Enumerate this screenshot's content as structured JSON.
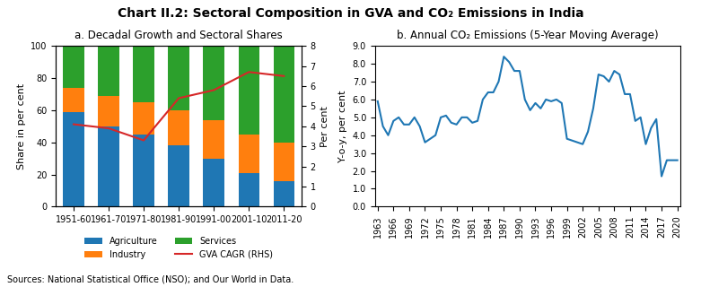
{
  "title": "Chart II.2: Sectoral Composition in GVA and CO₂ Emissions in India",
  "annotations": [
    "Sources: National Statistical Office (NSO); and Our World in Data."
  ],
  "chart_data": [
    {
      "type": "bar",
      "title": "a. Decadal Growth and Sectoral Shares",
      "stacked": true,
      "grid": false,
      "legend": "lower center",
      "categories": [
        "1951-60",
        "1961-70",
        "1971-80",
        "1981-90",
        "1991-00",
        "2001-10",
        "2011-20"
      ],
      "series": [
        {
          "name": "Agriculture",
          "values": [
            59,
            50,
            45,
            38,
            30,
            21,
            16
          ]
        },
        {
          "name": "Industry",
          "values": [
            15,
            19,
            20,
            22,
            24,
            24,
            24
          ]
        },
        {
          "name": "Services",
          "values": [
            26,
            31,
            35,
            40,
            46,
            55,
            60
          ]
        },
        {
          "name": "GVA CAGR (RHS)",
          "type": "line",
          "axis": "y2",
          "values": [
            4.1,
            3.9,
            3.3,
            5.4,
            5.8,
            6.7,
            6.5
          ]
        }
      ],
      "ylabel": "Share in per cent",
      "y2label": "Per cent",
      "ylim": [
        0,
        100
      ],
      "yticks": [
        0,
        20,
        40,
        60,
        80,
        100
      ],
      "y2lim": [
        0,
        8
      ],
      "y2ticks": [
        0,
        1,
        2,
        3,
        4,
        5,
        6,
        7,
        8
      ]
    },
    {
      "type": "line",
      "title": "b. Annual CO₂ Emissions (5-Year Moving Average)",
      "grid": false,
      "ylabel": "Y-o-y, per cent",
      "x": [
        1963,
        1964,
        1965,
        1966,
        1967,
        1968,
        1969,
        1970,
        1971,
        1972,
        1973,
        1974,
        1975,
        1976,
        1977,
        1978,
        1979,
        1980,
        1981,
        1982,
        1983,
        1984,
        1985,
        1986,
        1987,
        1988,
        1989,
        1990,
        1991,
        1992,
        1993,
        1994,
        1995,
        1996,
        1997,
        1998,
        1999,
        2000,
        2001,
        2002,
        2003,
        2004,
        2005,
        2006,
        2007,
        2008,
        2009,
        2010,
        2011,
        2012,
        2013,
        2014,
        2015,
        2016,
        2017,
        2018,
        2019,
        2020
      ],
      "values": [
        5.9,
        4.5,
        4.0,
        4.8,
        5.0,
        4.6,
        4.6,
        5.0,
        4.5,
        3.6,
        3.8,
        4.0,
        5.0,
        5.1,
        4.7,
        4.6,
        5.0,
        5.0,
        4.7,
        4.8,
        6.0,
        6.4,
        6.4,
        7.0,
        8.4,
        8.1,
        7.6,
        7.6,
        6.0,
        5.4,
        5.8,
        5.5,
        6.0,
        5.9,
        6.0,
        5.8,
        3.8,
        3.7,
        3.6,
        3.5,
        4.2,
        5.5,
        7.4,
        7.3,
        7.0,
        7.6,
        7.4,
        6.3,
        6.3,
        4.8,
        5.0,
        3.5,
        4.4,
        4.9,
        1.7,
        2.6,
        2.6,
        2.6
      ],
      "xlim": [
        1962.5,
        2020.5
      ],
      "xticks": [
        1963,
        1966,
        1969,
        1972,
        1975,
        1978,
        1981,
        1984,
        1987,
        1990,
        1993,
        1996,
        1999,
        2002,
        2005,
        2008,
        2011,
        2014,
        2017,
        2020
      ],
      "ylim": [
        0,
        9
      ],
      "yticks": [
        {
          "value": 0,
          "label": "0.0"
        },
        {
          "value": 1,
          "label": "1.0"
        },
        {
          "value": 2,
          "label": "2.0"
        },
        {
          "value": 3,
          "label": "3.0"
        },
        {
          "value": 4,
          "label": "4.0"
        },
        {
          "value": 5,
          "label": "5.0"
        },
        {
          "value": 6,
          "label": "6.0"
        },
        {
          "value": 7,
          "label": "7.0"
        },
        {
          "value": 8,
          "label": "8.0"
        },
        {
          "value": 9,
          "label": "9.0"
        }
      ]
    }
  ]
}
